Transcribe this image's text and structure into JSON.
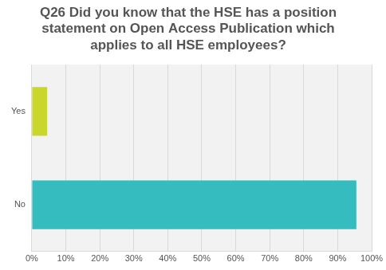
{
  "chart_data": {
    "type": "bar",
    "title": "Q26 Did you know that the HSE has a position statement on Open Access Publication which applies to all HSE employees?",
    "categories": [
      "Yes",
      "No"
    ],
    "values": [
      4.5,
      95.5
    ],
    "colors": [
      "#c9d62c",
      "#34bcbf"
    ],
    "orientation": "horizontal",
    "xlim": [
      0,
      100
    ],
    "xticks": [
      {
        "value": 0,
        "label": "0%"
      },
      {
        "value": 10,
        "label": "10%"
      },
      {
        "value": 20,
        "label": "20%"
      },
      {
        "value": 30,
        "label": "30%"
      },
      {
        "value": 40,
        "label": "40%"
      },
      {
        "value": 50,
        "label": "50%"
      },
      {
        "value": 60,
        "label": "60%"
      },
      {
        "value": 70,
        "label": "70%"
      },
      {
        "value": 80,
        "label": "80%"
      },
      {
        "value": 90,
        "label": "90%"
      },
      {
        "value": 100,
        "label": "100%"
      }
    ],
    "grid": true
  }
}
